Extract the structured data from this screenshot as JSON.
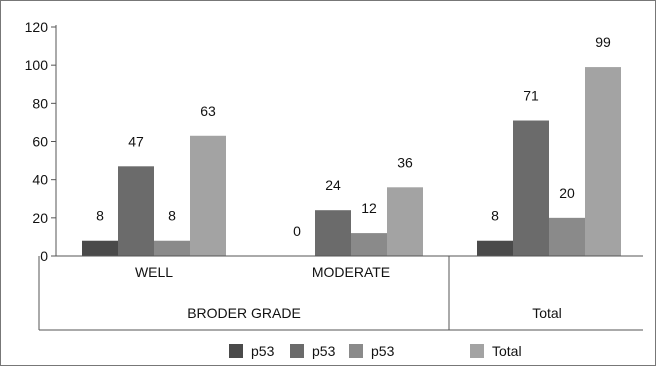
{
  "chart_data": {
    "type": "bar",
    "title": "",
    "xlabel": "",
    "ylabel": "",
    "ylim": [
      0,
      120
    ],
    "yticks": [
      "0",
      "20",
      "40",
      "60",
      "80",
      "100",
      "120"
    ],
    "grid": false,
    "legend_position": "bottom",
    "categories": [
      "WELL",
      "MODERATE",
      "Total"
    ],
    "groups": [
      {
        "label": "BRODER GRADE",
        "categories": [
          "WELL",
          "MODERATE"
        ]
      },
      {
        "label": "Total",
        "categories": [
          "Total"
        ]
      }
    ],
    "series": [
      {
        "name": "p53",
        "color": "#4a4a4a",
        "values": [
          8,
          0,
          8
        ]
      },
      {
        "name": "p53",
        "color": "#6b6b6b",
        "values": [
          47,
          24,
          71
        ]
      },
      {
        "name": "p53",
        "color": "#8a8a8a",
        "values": [
          8,
          12,
          20
        ]
      },
      {
        "name": "Total",
        "color": "#a3a3a3",
        "values": [
          63,
          36,
          99
        ]
      }
    ]
  }
}
